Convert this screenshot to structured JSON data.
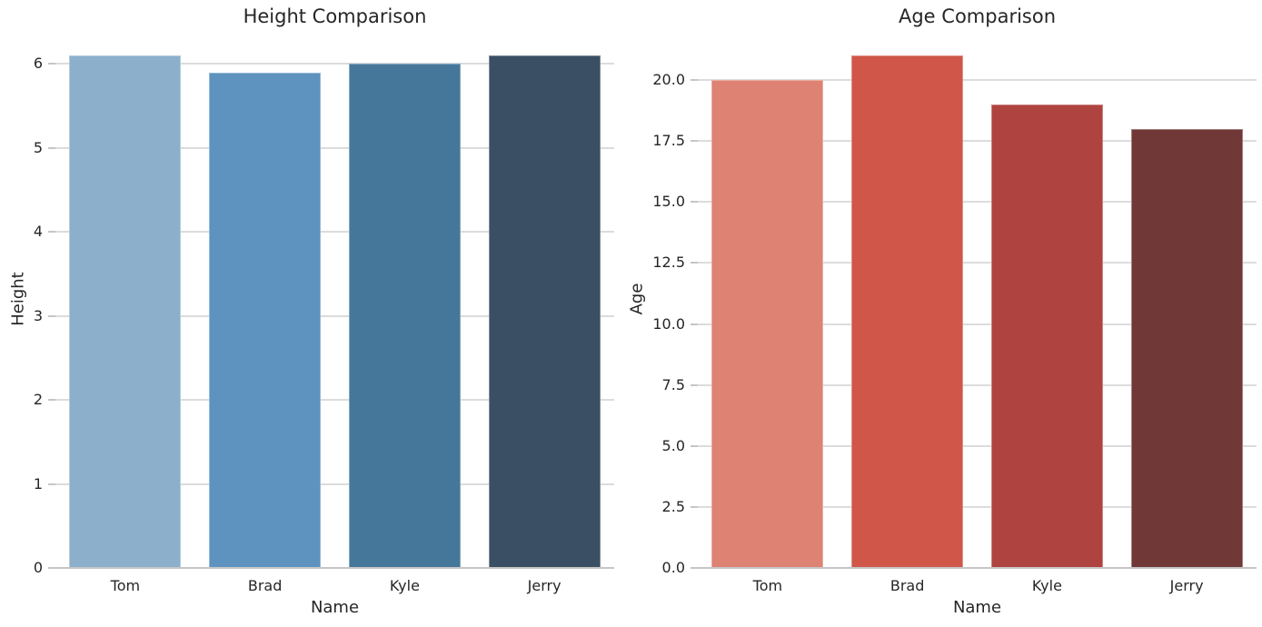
{
  "figure": {
    "background": "#ffffff",
    "text_color": "#262626",
    "grid_color": "#dcdcdc",
    "spine_color": "#c6c6c6"
  },
  "chart_data": [
    {
      "type": "bar",
      "title": "Height Comparison",
      "xlabel": "Name",
      "ylabel": "Height",
      "categories": [
        "Tom",
        "Brad",
        "Kyle",
        "Jerry"
      ],
      "values": [
        6.1,
        5.9,
        6.0,
        6.1
      ],
      "bar_colors": [
        "#8cb0cc",
        "#5d93be",
        "#45779a",
        "#3a4f63"
      ],
      "ylim": [
        0,
        6.405
      ],
      "yticks": [
        {
          "value": 0,
          "label": "0"
        },
        {
          "value": 1,
          "label": "1"
        },
        {
          "value": 2,
          "label": "2"
        },
        {
          "value": 3,
          "label": "3"
        },
        {
          "value": 4,
          "label": "4"
        },
        {
          "value": 5,
          "label": "5"
        },
        {
          "value": 6,
          "label": "6"
        }
      ],
      "grid": true,
      "legend": false
    },
    {
      "type": "bar",
      "title": "Age Comparison",
      "xlabel": "Name",
      "ylabel": "Age",
      "categories": [
        "Tom",
        "Brad",
        "Kyle",
        "Jerry"
      ],
      "values": [
        20,
        21,
        19,
        18
      ],
      "bar_colors": [
        "#de8273",
        "#d0564a",
        "#af4340",
        "#703937"
      ],
      "ylim": [
        0,
        22.05
      ],
      "yticks": [
        {
          "value": 0,
          "label": "0.0"
        },
        {
          "value": 2.5,
          "label": "2.5"
        },
        {
          "value": 5,
          "label": "5.0"
        },
        {
          "value": 7.5,
          "label": "7.5"
        },
        {
          "value": 10,
          "label": "10.0"
        },
        {
          "value": 12.5,
          "label": "12.5"
        },
        {
          "value": 15,
          "label": "15.0"
        },
        {
          "value": 17.5,
          "label": "17.5"
        },
        {
          "value": 20,
          "label": "20.0"
        }
      ],
      "grid": true,
      "legend": false
    }
  ]
}
